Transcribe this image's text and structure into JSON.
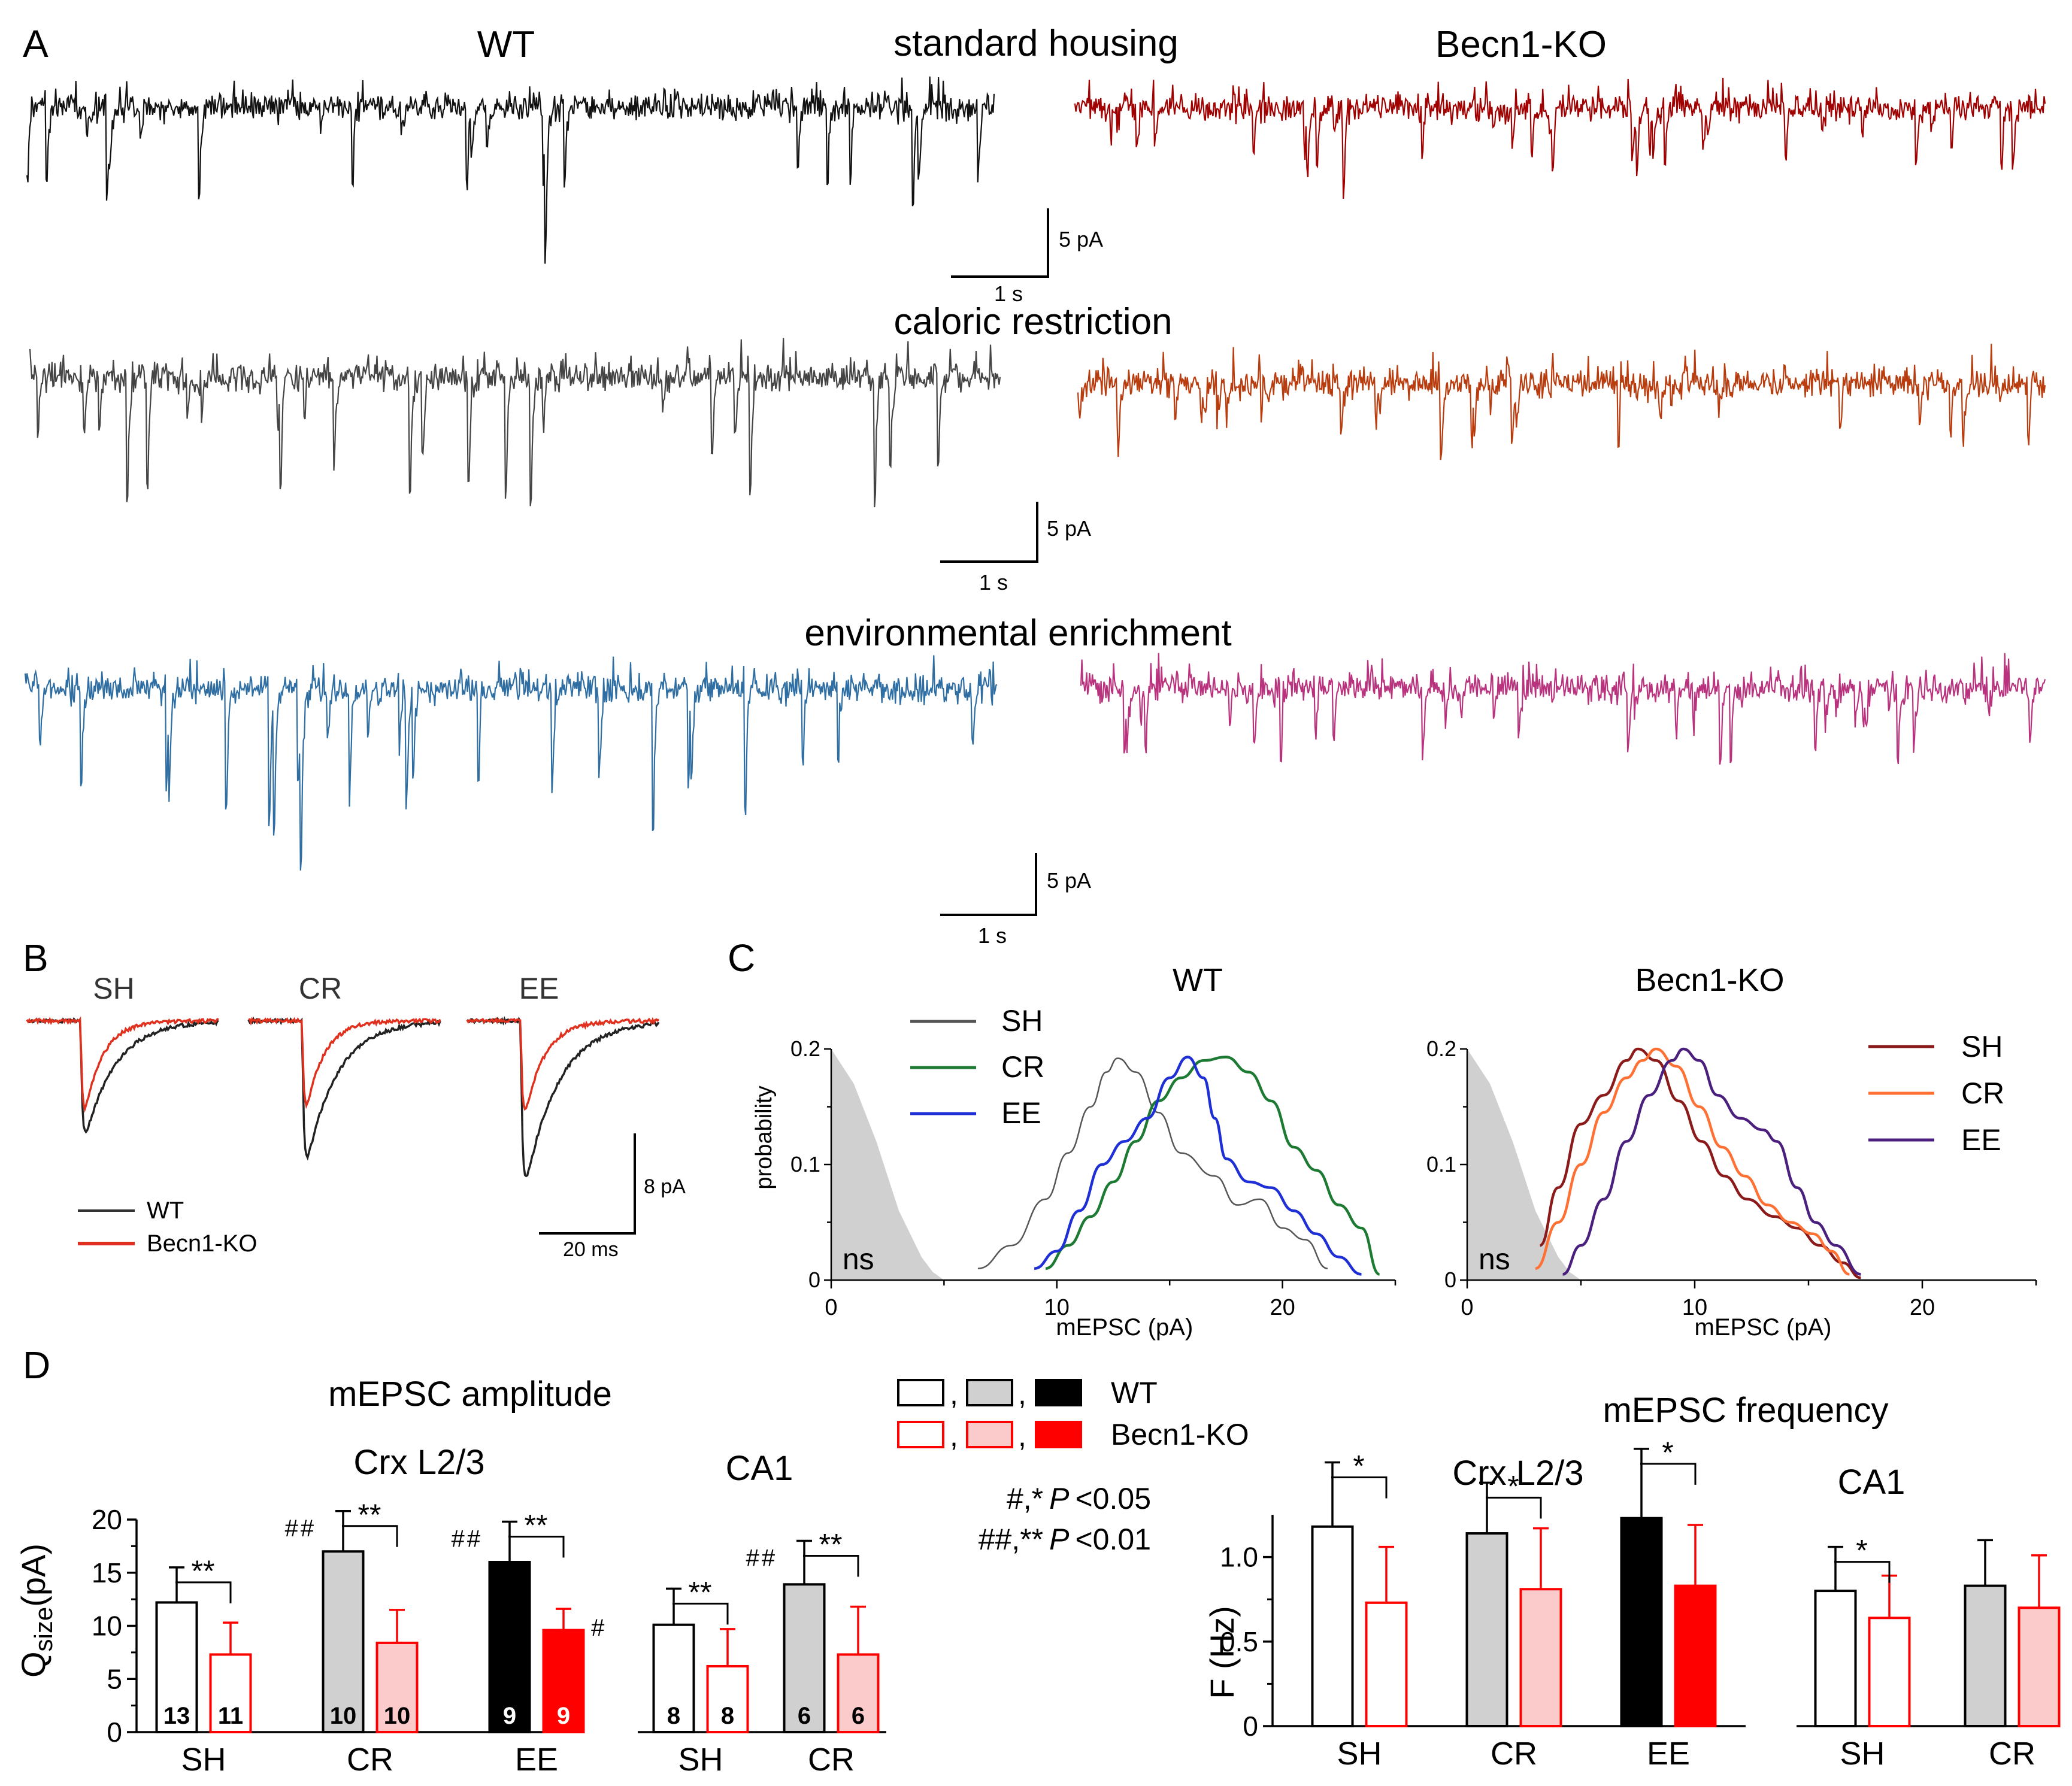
{
  "colors": {
    "wt_sh": "#111111",
    "wt_cr": "#444444",
    "wt_ee": "#2f6ea3",
    "ko_sh": "#a00000",
    "ko_cr": "#b83c0e",
    "ko_ee": "#b8327d",
    "c_wt_sh": "#555555",
    "c_wt_cr": "#1d7a33",
    "c_wt_ee": "#1f2fd6",
    "c_ko_sh": "#8b1a1a",
    "c_ko_cr": "#ff7034",
    "c_ko_ee": "#4a1f7d",
    "ko_red": "#ff0000",
    "ko_pink": "#fbcaca",
    "wt_gray": "#d0d0d0",
    "ns_fill": "#d0d0d0"
  },
  "panelA": {
    "letter": "A",
    "col_wt": "WT",
    "col_ko": "Becn1-KO",
    "rows": [
      {
        "title": "standard housing",
        "scale_y": "5 pA",
        "scale_x": "1 s"
      },
      {
        "title": "caloric restriction",
        "scale_y": "5 pA",
        "scale_x": "1 s"
      },
      {
        "title": "environmental enrichment",
        "scale_y": "5 pA",
        "scale_x": "1 s"
      }
    ]
  },
  "panelB": {
    "letter": "B",
    "conditions": [
      "SH",
      "CR",
      "EE"
    ],
    "legend": [
      "WT",
      "Becn1-KO"
    ],
    "scale_y": "8 pA",
    "scale_x": "20 ms"
  },
  "panelD": {
    "letter": "D",
    "amp_title": "mEPSC amplitude",
    "freq_title": "mEPSC frequency",
    "crx": "Crx L2/3",
    "ca1": "CA1",
    "amp_ylabel_main": "Q",
    "amp_ylabel_sub": "size",
    "amp_ylabel_unit": "(pA)",
    "freq_ylabel": "F (Hz)",
    "legend_wt": "WT",
    "legend_ko": "Becn1-KO",
    "legend_comma": ",",
    "sig1_sym": "#,*",
    "sig1_p": "P",
    "sig1_val": "<0.05",
    "sig2_sym": "##,**",
    "sig2_p": "P",
    "sig2_val": "<0.01"
  },
  "chart_data": [
    {
      "type": "line",
      "title": "WT",
      "panel": "C",
      "xlabel": "mEPSC (pA)",
      "ylabel": "probability",
      "xlim": [
        0,
        25
      ],
      "ylim": [
        0,
        0.2
      ],
      "xticks": [
        "0",
        "10",
        "20"
      ],
      "yticks": [
        "0",
        "0.1",
        "0.2"
      ],
      "ns_label": "ns",
      "legend": [
        "SH",
        "CR",
        "EE"
      ],
      "ns_region": {
        "x": [
          0,
          1,
          2,
          3,
          4,
          4.5,
          5
        ],
        "y": [
          0.2,
          0.17,
          0.12,
          0.06,
          0.02,
          0.007,
          0
        ]
      },
      "series": [
        {
          "name": "SH",
          "x": [
            6.5,
            8,
            9.5,
            10.5,
            11.5,
            12.2,
            12.7,
            13.5,
            14.5,
            15.5,
            17,
            18,
            19,
            20,
            21,
            22
          ],
          "y": [
            0.01,
            0.03,
            0.07,
            0.11,
            0.15,
            0.18,
            0.192,
            0.18,
            0.145,
            0.11,
            0.09,
            0.065,
            0.07,
            0.045,
            0.035,
            0.01
          ]
        },
        {
          "name": "CR",
          "x": [
            9.5,
            10.5,
            11.5,
            12.5,
            13.5,
            14.5,
            15.5,
            16.5,
            17.5,
            18.5,
            19.5,
            20.5,
            21.5,
            22.5,
            23.5,
            24.3
          ],
          "y": [
            0.01,
            0.03,
            0.055,
            0.085,
            0.12,
            0.155,
            0.175,
            0.19,
            0.193,
            0.18,
            0.155,
            0.115,
            0.095,
            0.065,
            0.045,
            0.005
          ]
        },
        {
          "name": "EE",
          "x": [
            9,
            10,
            11,
            12,
            13,
            14,
            15,
            15.8,
            16.5,
            17,
            17.5,
            18.5,
            19.5,
            20.5,
            21.5,
            22.5,
            23.5
          ],
          "y": [
            0.01,
            0.025,
            0.06,
            0.1,
            0.12,
            0.14,
            0.175,
            0.193,
            0.175,
            0.14,
            0.105,
            0.085,
            0.08,
            0.06,
            0.04,
            0.02,
            0.005
          ]
        }
      ]
    },
    {
      "type": "line",
      "title": "Becn1-KO",
      "panel": "C",
      "xlabel": "mEPSC (pA)",
      "ylabel": "probability",
      "xlim": [
        0,
        25
      ],
      "ylim": [
        0,
        0.2
      ],
      "xticks": [
        "0",
        "10",
        "20"
      ],
      "yticks": [
        "0",
        "0.1",
        "0.2"
      ],
      "ns_label": "ns",
      "legend": [
        "SH",
        "CR",
        "EE"
      ],
      "ns_region": {
        "x": [
          0,
          1,
          2,
          3,
          4,
          4.5,
          5
        ],
        "y": [
          0.2,
          0.17,
          0.12,
          0.06,
          0.02,
          0.007,
          0
        ]
      },
      "series": [
        {
          "name": "SH",
          "x": [
            3.2,
            4,
            5,
            6,
            7,
            7.5,
            8.3,
            9.3,
            10.3,
            11.3,
            12.3,
            13.5,
            14.5,
            15.5,
            16.5,
            17.3
          ],
          "y": [
            0.03,
            0.08,
            0.135,
            0.16,
            0.19,
            0.2,
            0.19,
            0.155,
            0.12,
            0.09,
            0.07,
            0.055,
            0.045,
            0.03,
            0.015,
            0.002
          ]
        },
        {
          "name": "CR",
          "x": [
            3,
            4,
            5,
            6,
            7,
            7.7,
            8.3,
            9.2,
            10.2,
            11.2,
            12.2,
            13.2,
            14.2,
            15.2,
            16,
            16.8
          ],
          "y": [
            0.01,
            0.05,
            0.1,
            0.145,
            0.175,
            0.19,
            0.2,
            0.185,
            0.15,
            0.115,
            0.09,
            0.065,
            0.05,
            0.04,
            0.025,
            0.005
          ]
        },
        {
          "name": "EE",
          "x": [
            4.2,
            5,
            6,
            7,
            8,
            9,
            9.5,
            10.2,
            11,
            12,
            13,
            13.6,
            14.5,
            15.3,
            16.2,
            17.3
          ],
          "y": [
            0.005,
            0.03,
            0.07,
            0.12,
            0.16,
            0.19,
            0.2,
            0.19,
            0.16,
            0.14,
            0.13,
            0.12,
            0.08,
            0.05,
            0.03,
            0.005
          ]
        }
      ]
    },
    {
      "type": "bar",
      "title": "mEPSC amplitude — Crx L2/3",
      "ylabel": "Qsize(pA)",
      "ylim": [
        0,
        20
      ],
      "yticks": [
        "0",
        "5",
        "10",
        "15",
        "20"
      ],
      "groups": [
        {
          "label": "SH",
          "wt": 12.2,
          "wt_sd": 3.3,
          "ko": 7.3,
          "ko_sd": 3.0,
          "n_wt": "13",
          "n_ko": "11",
          "sig": "**",
          "wt_mark": "",
          "ko_mark": "",
          "wt_fill": "#ffffff",
          "ko_fill": "#ffffff",
          "wt_edge": "#000000",
          "ko_edge": "#ff0000",
          "n_color_wt": "#000000",
          "n_color_ko": "#000000"
        },
        {
          "label": "CR",
          "wt": 17.0,
          "wt_sd": 3.8,
          "ko": 8.4,
          "ko_sd": 3.1,
          "n_wt": "10",
          "n_ko": "10",
          "sig": "**",
          "wt_mark": "##",
          "ko_mark": "",
          "wt_fill": "#d0d0d0",
          "ko_fill": "#fbcaca",
          "wt_edge": "#000000",
          "ko_edge": "#ff0000",
          "n_color_wt": "#000000",
          "n_color_ko": "#000000"
        },
        {
          "label": "EE",
          "wt": 16.0,
          "wt_sd": 3.8,
          "ko": 9.6,
          "ko_sd": 2.0,
          "n_wt": "9",
          "n_ko": "9",
          "sig": "**",
          "wt_mark": "##",
          "ko_mark": "#",
          "wt_fill": "#000000",
          "ko_fill": "#ff0000",
          "wt_edge": "#000000",
          "ko_edge": "#ff0000",
          "n_color_wt": "#ffffff",
          "n_color_ko": "#ffffff"
        }
      ]
    },
    {
      "type": "bar",
      "title": "mEPSC amplitude — CA1",
      "ylim": [
        0,
        20
      ],
      "groups": [
        {
          "label": "SH",
          "wt": 10.1,
          "wt_sd": 3.4,
          "ko": 6.2,
          "ko_sd": 3.5,
          "n_wt": "8",
          "n_ko": "8",
          "sig": "**",
          "wt_mark": "",
          "ko_mark": "",
          "wt_fill": "#ffffff",
          "ko_fill": "#ffffff",
          "wt_edge": "#000000",
          "ko_edge": "#ff0000",
          "n_color_wt": "#000000",
          "n_color_ko": "#000000"
        },
        {
          "label": "CR",
          "wt": 13.9,
          "wt_sd": 4.1,
          "ko": 7.3,
          "ko_sd": 4.5,
          "n_wt": "6",
          "n_ko": "6",
          "sig": "**",
          "wt_mark": "##",
          "ko_mark": "",
          "wt_fill": "#d0d0d0",
          "ko_fill": "#fbcaca",
          "wt_edge": "#000000",
          "ko_edge": "#ff0000",
          "n_color_wt": "#000000",
          "n_color_ko": "#000000"
        }
      ]
    },
    {
      "type": "bar",
      "title": "mEPSC frequency — Crx L2/3",
      "ylabel": "F (Hz)",
      "ylim": [
        0,
        1.25
      ],
      "yticks": [
        "0",
        "0.5",
        "1.0"
      ],
      "groups": [
        {
          "label": "SH",
          "wt": 1.18,
          "wt_sd": 0.38,
          "ko": 0.73,
          "ko_sd": 0.33,
          "sig": "*",
          "wt_fill": "#ffffff",
          "ko_fill": "#ffffff",
          "wt_edge": "#000000",
          "ko_edge": "#ff0000"
        },
        {
          "label": "CR",
          "wt": 1.14,
          "wt_sd": 0.3,
          "ko": 0.81,
          "ko_sd": 0.36,
          "sig": "*",
          "wt_fill": "#d0d0d0",
          "ko_fill": "#fbcaca",
          "wt_edge": "#000000",
          "ko_edge": "#ff0000"
        },
        {
          "label": "EE",
          "wt": 1.23,
          "wt_sd": 0.41,
          "ko": 0.83,
          "ko_sd": 0.36,
          "sig": "*",
          "wt_fill": "#000000",
          "ko_fill": "#ff0000",
          "wt_edge": "#000000",
          "ko_edge": "#ff0000"
        }
      ]
    },
    {
      "type": "bar",
      "title": "mEPSC frequency — CA1",
      "ylim": [
        0,
        1.25
      ],
      "groups": [
        {
          "label": "SH",
          "wt": 0.8,
          "wt_sd": 0.26,
          "ko": 0.64,
          "ko_sd": 0.25,
          "sig": "*",
          "wt_fill": "#ffffff",
          "ko_fill": "#ffffff",
          "wt_edge": "#000000",
          "ko_edge": "#ff0000"
        },
        {
          "label": "CR",
          "wt": 0.83,
          "wt_sd": 0.27,
          "ko": 0.7,
          "ko_sd": 0.31,
          "sig": "",
          "wt_fill": "#d0d0d0",
          "ko_fill": "#fbcaca",
          "wt_edge": "#000000",
          "ko_edge": "#ff0000"
        }
      ]
    }
  ]
}
